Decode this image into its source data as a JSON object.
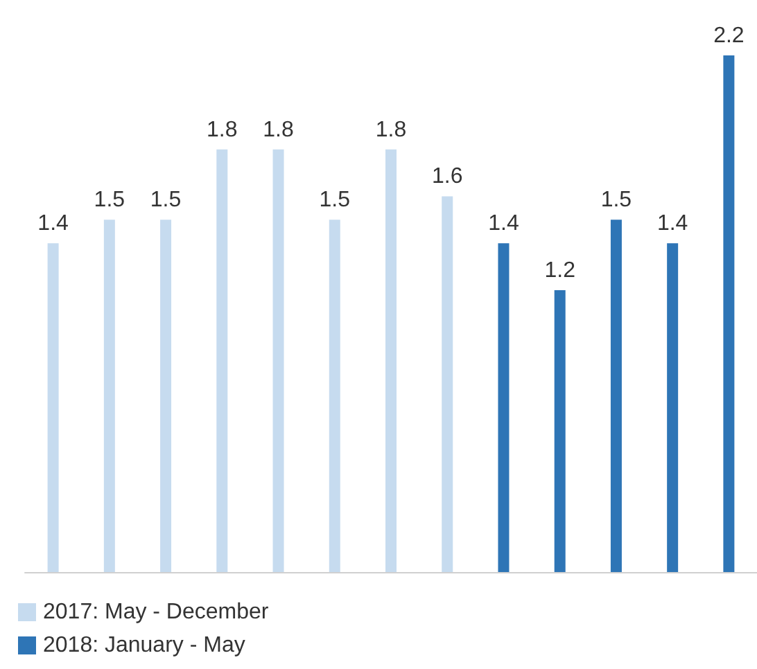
{
  "chart_data": {
    "type": "bar",
    "categories": [
      null,
      null,
      null,
      null,
      null,
      null,
      null,
      null,
      null,
      null,
      null,
      null,
      null
    ],
    "series": [
      {
        "name": "2017: May - December",
        "color": "#c6dbef",
        "values": [
          1.4,
          1.5,
          1.5,
          1.8,
          1.8,
          1.5,
          1.8,
          1.6,
          null,
          null,
          null,
          null,
          null
        ]
      },
      {
        "name": "2018: January - May",
        "color": "#2e75b6",
        "values": [
          null,
          null,
          null,
          null,
          null,
          null,
          null,
          null,
          1.4,
          1.2,
          1.5,
          1.4,
          2.2
        ]
      }
    ],
    "ylim": [
      0,
      2.2
    ],
    "stacked": true,
    "data_labels": true,
    "legend": "bottom left"
  }
}
